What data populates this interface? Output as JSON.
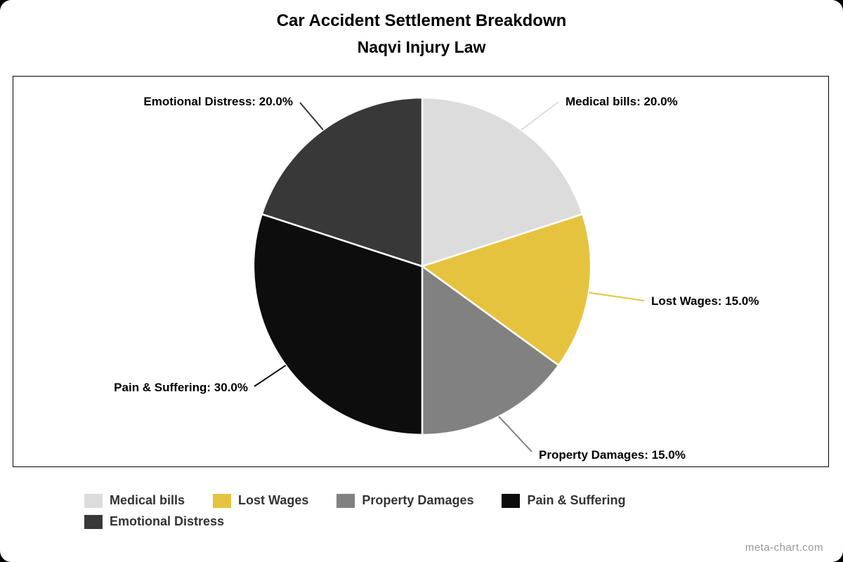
{
  "title": {
    "line1": "Car Accident Settlement Breakdown",
    "line2": "Naqvi Injury Law"
  },
  "watermark": "meta-chart.com",
  "chart_data": {
    "type": "pie",
    "title": "Car Accident Settlement Breakdown",
    "subtitle": "Naqvi Injury Law",
    "categories": [
      "Medical bills",
      "Lost Wages",
      "Property Damages",
      "Pain & Suffering",
      "Emotional Distress"
    ],
    "values": [
      20.0,
      15.0,
      15.0,
      30.0,
      20.0
    ],
    "unit": "%",
    "colors": [
      "#dcdcdc",
      "#e6c33f",
      "#818181",
      "#0d0d0d",
      "#383838"
    ],
    "slice_labels": [
      "Medical bills: 20.0%",
      "Lost Wages: 15.0%",
      "Property Damages: 15.0%",
      "Pain & Suffering: 30.0%",
      "Emotional Distress: 20.0%"
    ],
    "start_angle_deg": -90,
    "direction": "clockwise",
    "legend_position": "bottom",
    "grid": false
  }
}
